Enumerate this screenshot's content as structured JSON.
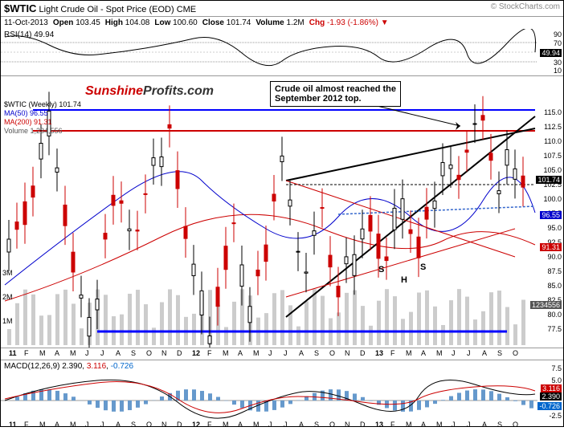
{
  "header": {
    "symbol": "$WTIC",
    "desc": "Light Crude Oil - Spot Price (EOD)",
    "exchange": "CME",
    "attribution": "© StockCharts.com"
  },
  "subheader": {
    "date": "11-Oct-2013",
    "open_lbl": "Open",
    "open": "103.45",
    "high_lbl": "High",
    "high": "104.08",
    "low_lbl": "Low",
    "low": "100.60",
    "close_lbl": "Close",
    "close": "101.74",
    "vol_lbl": "Volume",
    "vol": "1.2M",
    "chg_lbl": "Chg",
    "chg": "-1.93 (-1.86%)",
    "down_arrow": "▼"
  },
  "rsi": {
    "label": "RSI(14)",
    "value": "49.94",
    "scale": [
      "90",
      "70",
      "50",
      "30",
      "10"
    ],
    "tag": "49.94"
  },
  "main": {
    "sunshine": {
      "p1": "Sunshine",
      "p2": "Profits.com"
    },
    "annotation": "Crude oil almost reached the\nSeptember 2012 top.",
    "legend": {
      "wtic": "$WTIC (Weekly) 101.74",
      "ma50": "MA(50) 96.55",
      "ma200": "MA(200) 91.31",
      "vol": "Volume 1,234,556"
    },
    "yscale": [
      "115.0",
      "112.5",
      "110.0",
      "107.5",
      "105.0",
      "102.5",
      "100.0",
      "97.5",
      "95.0",
      "92.5",
      "90.0",
      "87.5",
      "85.0",
      "82.5",
      "80.0",
      "77.5"
    ],
    "vol_scale": [
      "3M",
      "2M",
      "1M"
    ],
    "price_tag": "101.74",
    "ma50_tag": "96.55",
    "ma200_tag": "91.31",
    "vol_tag": "1234556",
    "sh_labels": {
      "s1": "S",
      "h": "H",
      "s2": "S"
    }
  },
  "timeaxis": {
    "labels": [
      "11",
      "F",
      "M",
      "A",
      "M",
      "J",
      "J",
      "A",
      "S",
      "O",
      "N",
      "D",
      "12",
      "F",
      "M",
      "A",
      "M",
      "J",
      "J",
      "A",
      "S",
      "O",
      "N",
      "D",
      "13",
      "F",
      "M",
      "A",
      "M",
      "J",
      "J",
      "A",
      "S",
      "O"
    ]
  },
  "macd": {
    "label": "MACD(12,26,9)",
    "v1": "2.390",
    "v2": "3.116",
    "v3": "-0.726",
    "scale": [
      "7.5",
      "5.0",
      "2.5",
      "0.0",
      "-2.5"
    ],
    "tag1": "3.116",
    "tag2": "2.390",
    "tag3": "-0.726"
  },
  "colors": {
    "ma50": "#0000cc",
    "ma200": "#cc0000",
    "candle_up": "#ffffff",
    "candle_dn": "#cc0000",
    "vol_bar": "#bbbbbb",
    "trend_black": "#000000",
    "trend_red": "#cc0000",
    "trend_blue": "#0000ff",
    "dash_blue": "#3366cc",
    "macd_line": "#000000",
    "macd_sig": "#cc0000",
    "macd_hist": "#6699cc"
  }
}
